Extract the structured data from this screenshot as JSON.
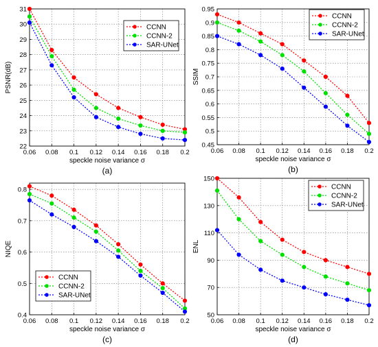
{
  "chart_data": [
    {
      "type": "line",
      "caption": "(a)",
      "xlabel": "speckle noise variance σ",
      "ylabel": "PSNR(dB)",
      "xlim": [
        0.06,
        0.2
      ],
      "ylim": [
        22,
        31
      ],
      "xticks": [
        "0.06",
        "0.08",
        "0.1",
        "0.12",
        "0.14",
        "0.16",
        "0.18",
        "0.2"
      ],
      "yticks": [
        "22",
        "23",
        "24",
        "25",
        "26",
        "27",
        "28",
        "29",
        "30",
        "31"
      ],
      "x": [
        0.06,
        0.08,
        0.1,
        0.12,
        0.14,
        0.16,
        0.18,
        0.2
      ],
      "grid": true,
      "legend": "top-right",
      "series": [
        {
          "name": "CCNN",
          "color": "#ff0000",
          "values": [
            31.0,
            28.3,
            26.5,
            25.4,
            24.5,
            23.9,
            23.4,
            23.1
          ]
        },
        {
          "name": "CCNN-2",
          "color": "#00e000",
          "values": [
            30.5,
            27.9,
            25.7,
            24.5,
            23.8,
            23.35,
            23.0,
            22.9
          ]
        },
        {
          "name": "SAR-UNet",
          "color": "#0000ff",
          "values": [
            30.1,
            27.3,
            25.2,
            23.9,
            23.25,
            22.8,
            22.5,
            22.4
          ]
        }
      ]
    },
    {
      "type": "line",
      "caption": "(b)",
      "xlabel": "speckle noise variance σ",
      "ylabel": "SSIM",
      "xlim": [
        0.06,
        0.2
      ],
      "ylim": [
        0.45,
        0.95
      ],
      "xticks": [
        "0.06",
        "0.08",
        "0.1",
        "0.12",
        "0.14",
        "0.16",
        "0.18",
        "0.2"
      ],
      "yticks": [
        "0.45",
        "0.5",
        "0.55",
        "0.6",
        "0.65",
        "0.7",
        "0.75",
        "0.8",
        "0.85",
        "0.9",
        "0.95"
      ],
      "x": [
        0.06,
        0.08,
        0.1,
        0.12,
        0.14,
        0.16,
        0.18,
        0.2
      ],
      "grid": true,
      "legend": "top-right",
      "series": [
        {
          "name": "CCNN",
          "color": "#ff0000",
          "values": [
            0.93,
            0.9,
            0.86,
            0.82,
            0.76,
            0.7,
            0.63,
            0.53
          ]
        },
        {
          "name": "CCNN-2",
          "color": "#00e000",
          "values": [
            0.9,
            0.87,
            0.83,
            0.78,
            0.72,
            0.64,
            0.56,
            0.49
          ]
        },
        {
          "name": "SAR-UNet",
          "color": "#0000ff",
          "values": [
            0.85,
            0.82,
            0.78,
            0.73,
            0.66,
            0.59,
            0.52,
            0.46
          ]
        }
      ]
    },
    {
      "type": "line",
      "caption": "(c)",
      "xlabel": "speckle noise variance σ",
      "ylabel": "NIQE",
      "xlim": [
        0.06,
        0.2
      ],
      "ylim": [
        0.4,
        0.82
      ],
      "xticks": [
        "0.06",
        "0.08",
        "0.1",
        "0.12",
        "0.14",
        "0.16",
        "0.18",
        "0.2"
      ],
      "yticks": [
        "0.4",
        "0.5",
        "0.6",
        "0.7",
        "0.8"
      ],
      "x": [
        0.06,
        0.08,
        0.1,
        0.12,
        0.14,
        0.16,
        0.18,
        0.2
      ],
      "grid": true,
      "legend": "bottom-left",
      "series": [
        {
          "name": "CCNN",
          "color": "#ff0000",
          "values": [
            0.81,
            0.78,
            0.735,
            0.685,
            0.625,
            0.56,
            0.5,
            0.445
          ]
        },
        {
          "name": "CCNN-2",
          "color": "#00e000",
          "values": [
            0.785,
            0.755,
            0.71,
            0.665,
            0.605,
            0.54,
            0.485,
            0.42
          ]
        },
        {
          "name": "SAR-UNet",
          "color": "#0000ff",
          "values": [
            0.765,
            0.72,
            0.68,
            0.635,
            0.585,
            0.525,
            0.47,
            0.41
          ]
        }
      ]
    },
    {
      "type": "line",
      "caption": "(d)",
      "xlabel": "speckle noise variance σ",
      "ylabel": "ENL",
      "xlim": [
        0.06,
        0.2
      ],
      "ylim": [
        50,
        150
      ],
      "xticks": [
        "0.06",
        "0.08",
        "0.1",
        "0.12",
        "0.14",
        "0.16",
        "0.18",
        "0.2"
      ],
      "yticks": [
        "50",
        "70",
        "90",
        "110",
        "130",
        "150"
      ],
      "x": [
        0.06,
        0.08,
        0.1,
        0.12,
        0.14,
        0.16,
        0.18,
        0.2
      ],
      "grid": true,
      "legend": "top-right",
      "series": [
        {
          "name": "CCNN",
          "color": "#ff0000",
          "values": [
            150,
            136,
            118,
            105,
            96,
            90,
            85,
            80
          ]
        },
        {
          "name": "CCNN-2",
          "color": "#00e000",
          "values": [
            141,
            120,
            104,
            94,
            85,
            78,
            73,
            68
          ]
        },
        {
          "name": "SAR-UNet",
          "color": "#0000ff",
          "values": [
            112,
            94,
            83,
            75,
            70,
            65,
            61,
            57
          ]
        }
      ]
    }
  ]
}
